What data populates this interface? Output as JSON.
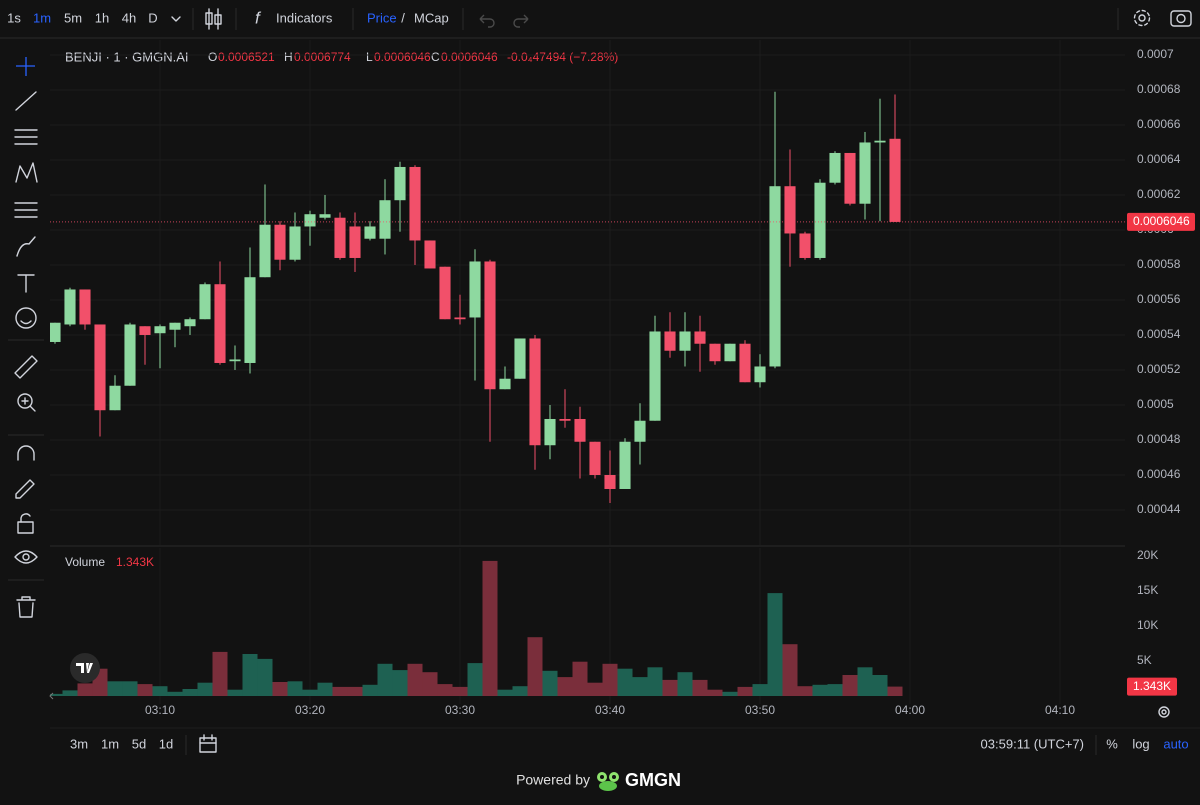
{
  "toolbar": {
    "intervals": [
      "1s",
      "1m",
      "5m",
      "1h",
      "4h",
      "D"
    ],
    "indicators": "Indicators",
    "price": "Price",
    "separator": "/",
    "mcap": "MCap"
  },
  "chart_data": [
    {
      "type": "candlestick",
      "title": "BENJI · 1 · GMGN.AI",
      "ohlc_labels": [
        "O",
        "H",
        "L",
        "C"
      ],
      "change": "-0.0₄47494 (−7.28%)",
      "x": [
        3,
        4,
        5,
        6,
        7,
        8,
        9,
        10,
        11,
        12,
        13,
        14,
        15,
        16,
        17,
        18,
        19,
        20,
        21,
        22,
        23,
        24,
        25,
        26,
        27,
        28,
        29,
        30,
        31,
        32,
        33,
        34,
        35,
        36,
        37,
        38,
        39,
        40,
        41,
        42,
        43,
        44,
        45,
        46,
        47,
        48,
        49,
        50,
        51,
        52,
        53,
        54,
        55,
        56,
        57,
        58,
        59
      ],
      "open": [
        0.000536,
        0.000546,
        0.000566,
        0.000546,
        0.000497,
        0.000511,
        0.000545,
        0.000541,
        0.000543,
        0.000545,
        0.000549,
        0.000569,
        0.000525,
        0.000524,
        0.000573,
        0.000603,
        0.000583,
        0.000602,
        0.000607,
        0.000607,
        0.000602,
        0.000595,
        0.000595,
        0.000617,
        0.000636,
        0.000594,
        0.000579,
        0.00055,
        0.00055,
        0.000582,
        0.000509,
        0.000515,
        0.000538,
        0.000477,
        0.000492,
        0.000492,
        0.000479,
        0.00046,
        0.000452,
        0.000479,
        0.000491,
        0.000542,
        0.000531,
        0.000542,
        0.000535,
        0.000525,
        0.000535,
        0.000513,
        0.000522,
        0.000625,
        0.000598,
        0.000584,
        0.000627,
        0.000644,
        0.000615,
        0.00065,
        0.0006521
      ],
      "high": [
        0.000547,
        0.000567,
        0.000566,
        0.000546,
        0.000517,
        0.000547,
        0.000545,
        0.000546,
        0.000547,
        0.00055,
        0.00057,
        0.000582,
        0.000534,
        0.00059,
        0.000626,
        0.000605,
        0.00061,
        0.000611,
        0.00062,
        0.00061,
        0.00061,
        0.000605,
        0.000629,
        0.000639,
        0.000637,
        0.000594,
        0.000579,
        0.000563,
        0.000589,
        0.000583,
        0.000522,
        0.000538,
        0.00054,
        0.0005,
        0.000509,
        0.000499,
        0.000479,
        0.000474,
        0.000481,
        0.000501,
        0.000551,
        0.000553,
        0.000553,
        0.000551,
        0.000535,
        0.000535,
        0.000537,
        0.000529,
        0.000679,
        0.000646,
        0.000599,
        0.000629,
        0.000645,
        0.000644,
        0.000656,
        0.000675,
        0.0006774
      ],
      "low": [
        0.000535,
        0.000545,
        0.000543,
        0.000482,
        0.000497,
        0.000511,
        0.000523,
        0.000521,
        0.000533,
        0.00054,
        0.000549,
        0.000523,
        0.00052,
        0.000518,
        0.000573,
        0.000577,
        0.000582,
        0.000591,
        0.000606,
        0.000583,
        0.000576,
        0.000594,
        0.000586,
        0.000599,
        0.00058,
        0.000578,
        0.000549,
        0.000546,
        0.000514,
        0.000479,
        0.000509,
        0.000515,
        0.000463,
        0.000469,
        0.000487,
        0.000458,
        0.000458,
        0.000444,
        0.000452,
        0.000466,
        0.000491,
        0.000527,
        0.000522,
        0.000519,
        0.000523,
        0.000525,
        0.000513,
        0.00051,
        0.000521,
        0.000579,
        0.000583,
        0.000583,
        0.000626,
        0.000614,
        0.000606,
        0.000605,
        0.0006046
      ],
      "close": [
        0.000547,
        0.000566,
        0.000546,
        0.000497,
        0.000511,
        0.000546,
        0.00054,
        0.000545,
        0.000547,
        0.000549,
        0.000569,
        0.000524,
        0.000526,
        0.000573,
        0.000603,
        0.000583,
        0.000602,
        0.000609,
        0.000609,
        0.000584,
        0.000584,
        0.000602,
        0.000617,
        0.000636,
        0.000594,
        0.000578,
        0.000549,
        0.000549,
        0.000582,
        0.000509,
        0.000515,
        0.000538,
        0.000477,
        0.000492,
        0.000491,
        0.000479,
        0.00046,
        0.000452,
        0.000479,
        0.000491,
        0.000542,
        0.000531,
        0.000542,
        0.000535,
        0.000525,
        0.000535,
        0.000513,
        0.000522,
        0.000625,
        0.000598,
        0.000584,
        0.000627,
        0.000644,
        0.000615,
        0.00065,
        0.000651,
        0.0006046
      ],
      "up_color": "#8ed9a0",
      "down_color": "#f2506a",
      "xlim": [
        2.667,
        74.333
      ],
      "xticks": [
        {
          "value": 10,
          "label": "03:10"
        },
        {
          "value": 20,
          "label": "03:20"
        },
        {
          "value": 30,
          "label": "03:30"
        },
        {
          "value": 40,
          "label": "03:40"
        },
        {
          "value": 50,
          "label": "03:50"
        },
        {
          "value": 60,
          "label": "04:00"
        },
        {
          "value": 70,
          "label": "04:10"
        }
      ],
      "ylim": [
        0.00042,
        0.0007074
      ],
      "yticks": [
        0.0007,
        0.00068,
        0.00066,
        0.00064,
        0.00062,
        0.0006,
        0.00058,
        0.00056,
        0.00054,
        0.00052,
        0.0005,
        0.00048,
        0.00046,
        0.00044
      ],
      "grid": true
    },
    {
      "type": "bar",
      "title": "Volume",
      "current_label": "1.343K",
      "values": [
        300,
        800,
        1800,
        3900,
        2100,
        2100,
        1700,
        1400,
        600,
        1000,
        1900,
        6300,
        900,
        6000,
        5300,
        2000,
        2100,
        900,
        1900,
        1300,
        1300,
        1600,
        4600,
        3700,
        4600,
        3400,
        1700,
        1300,
        4700,
        19300,
        900,
        1400,
        8400,
        3600,
        2700,
        4900,
        1900,
        4600,
        3900,
        2700,
        4100,
        2300,
        3400,
        2300,
        900,
        600,
        1300,
        1700,
        14700,
        7400,
        1400,
        1600,
        1700,
        3000,
        4100,
        3000,
        1343
      ],
      "up_color": "#1e6152",
      "down_color": "#7a2e3b",
      "ylim": [
        0,
        21143
      ],
      "yticks": [
        {
          "value": 5000,
          "label": "5K"
        },
        {
          "value": 10000,
          "label": "10K"
        },
        {
          "value": 15000,
          "label": "15K"
        },
        {
          "value": 20000,
          "label": "20K"
        }
      ],
      "grid": false
    }
  ],
  "footer": {
    "ranges": [
      "3m",
      "1m",
      "5d",
      "1d"
    ],
    "clock": "03:59:11 (UTC+7)",
    "percent": "%",
    "log": "log",
    "auto": "auto",
    "powered_by": "Powered by",
    "brand": "GMGN"
  }
}
